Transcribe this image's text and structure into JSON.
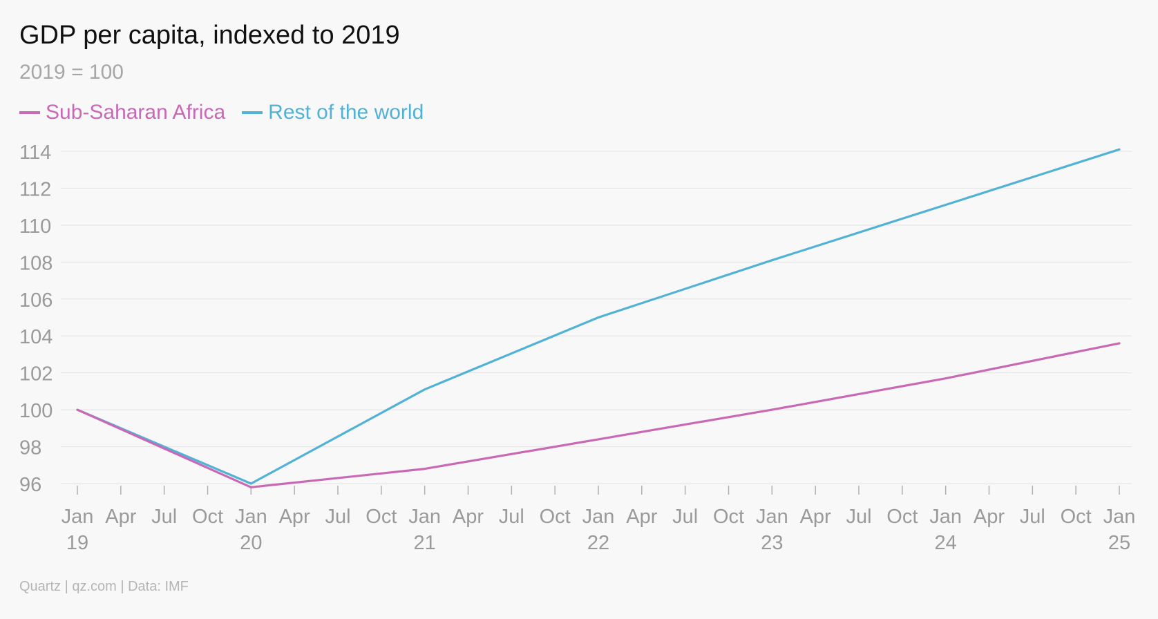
{
  "chart_data": {
    "type": "line",
    "title": "GDP per capita, indexed to 2019",
    "subtitle": "2019 = 100",
    "xlabel": "",
    "ylabel": "",
    "ylim": [
      96,
      114
    ],
    "yticks": [
      "96",
      "98",
      "100",
      "102",
      "104",
      "106",
      "108",
      "110",
      "112",
      "114"
    ],
    "xticks": [
      {
        "month": "Jan",
        "year": "19"
      },
      {
        "month": "Apr",
        "year": ""
      },
      {
        "month": "Jul",
        "year": ""
      },
      {
        "month": "Oct",
        "year": ""
      },
      {
        "month": "Jan",
        "year": "20"
      },
      {
        "month": "Apr",
        "year": ""
      },
      {
        "month": "Jul",
        "year": ""
      },
      {
        "month": "Oct",
        "year": ""
      },
      {
        "month": "Jan",
        "year": "21"
      },
      {
        "month": "Apr",
        "year": ""
      },
      {
        "month": "Jul",
        "year": ""
      },
      {
        "month": "Oct",
        "year": ""
      },
      {
        "month": "Jan",
        "year": "22"
      },
      {
        "month": "Apr",
        "year": ""
      },
      {
        "month": "Jul",
        "year": ""
      },
      {
        "month": "Oct",
        "year": ""
      },
      {
        "month": "Jan",
        "year": "23"
      },
      {
        "month": "Apr",
        "year": ""
      },
      {
        "month": "Jul",
        "year": ""
      },
      {
        "month": "Oct",
        "year": ""
      },
      {
        "month": "Jan",
        "year": "24"
      },
      {
        "month": "Apr",
        "year": ""
      },
      {
        "month": "Jul",
        "year": ""
      },
      {
        "month": "Oct",
        "year": ""
      },
      {
        "month": "Jan",
        "year": "25"
      }
    ],
    "x": [
      "Jan 2019",
      "Jan 2020",
      "Jan 2021",
      "Jan 2022",
      "Jan 2023",
      "Jan 2024",
      "Jan 2025"
    ],
    "series": [
      {
        "name": "Sub-Saharan Africa",
        "color": "#c969b6",
        "values": [
          100,
          95.8,
          96.8,
          98.4,
          100.0,
          101.7,
          103.6
        ]
      },
      {
        "name": "Rest of the world",
        "color": "#51b2d6",
        "values": [
          100,
          96.0,
          101.1,
          105.0,
          108.1,
          111.1,
          114.1
        ]
      }
    ],
    "grid": true,
    "legend_position": "top-left"
  },
  "source": "Quartz | qz.com | Data: IMF",
  "colors": {
    "gridline": "#e6e6e6",
    "tick_label": "#9a9a9a",
    "background": "#f8f8f8"
  }
}
